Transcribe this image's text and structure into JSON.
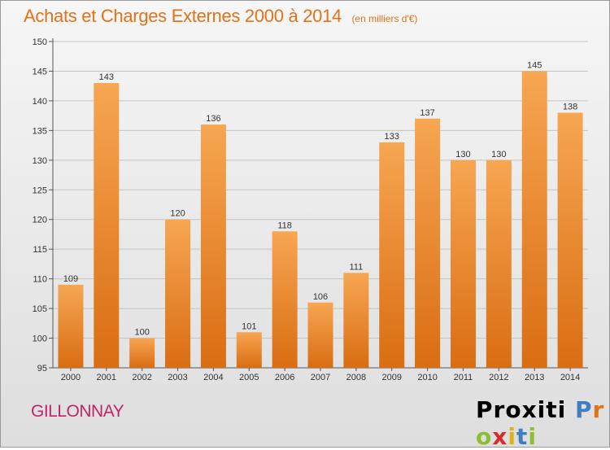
{
  "header": {
    "title": "Achats et Charges Externes 2000 à 2014",
    "subtitle": "(en milliers d'€)"
  },
  "footer": {
    "commune": "GILLONNAY",
    "logo_text": "Proxiti"
  },
  "colors": {
    "bar_light": "#f7a652",
    "bar_dark": "#d96d12",
    "title": "#e0731a",
    "commune": "#c0246a",
    "logo_letters": [
      "#3f7fc1",
      "#e0731a",
      "#8cbf2f",
      "#d92b2b",
      "#e0b21a",
      "#3f7fc1",
      "#8cbf2f"
    ]
  },
  "chart_data": {
    "type": "bar",
    "title": "Achats et Charges Externes 2000 à 2014",
    "subtitle": "(en milliers d'€)",
    "categories": [
      "2000",
      "2001",
      "2002",
      "2003",
      "2004",
      "2005",
      "2006",
      "2007",
      "2008",
      "2009",
      "2010",
      "2011",
      "2012",
      "2013",
      "2014"
    ],
    "values": [
      109,
      143,
      100,
      120,
      136,
      101,
      118,
      106,
      111,
      133,
      137,
      130,
      130,
      145,
      138
    ],
    "ylim": [
      95,
      150
    ],
    "yticks": [
      95,
      100,
      105,
      110,
      115,
      120,
      125,
      130,
      135,
      140,
      145,
      150
    ],
    "grid": true,
    "show_value_labels": true
  }
}
